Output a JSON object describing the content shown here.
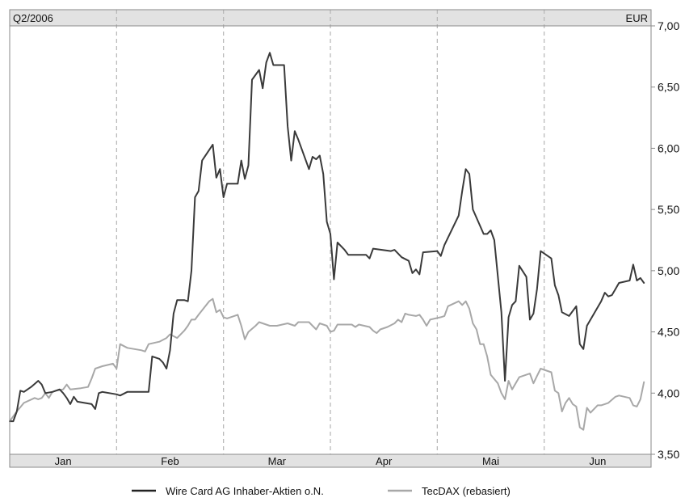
{
  "chart_data": {
    "type": "line",
    "period_label": "Q2/2006",
    "unit_label": "EUR",
    "ylim": [
      3.5,
      7.0
    ],
    "y_ticks": [
      "7,00",
      "6,50",
      "6,00",
      "5,50",
      "5,00",
      "4,50",
      "4,00",
      "3,50"
    ],
    "y_tick_values": [
      7.0,
      6.5,
      6.0,
      5.5,
      5.0,
      4.5,
      4.0,
      3.5
    ],
    "x_range": [
      0,
      180
    ],
    "months": [
      {
        "label": "Jan",
        "start": 0,
        "end": 30
      },
      {
        "label": "Feb",
        "start": 30,
        "end": 60
      },
      {
        "label": "Mar",
        "start": 60,
        "end": 90
      },
      {
        "label": "Apr",
        "start": 90,
        "end": 120
      },
      {
        "label": "Mai",
        "start": 120,
        "end": 150
      },
      {
        "label": "Jun",
        "start": 150,
        "end": 180
      }
    ],
    "grid": "vertical dashed at month boundaries",
    "legend_position": "bottom",
    "series": [
      {
        "name": "Wire Card AG Inhaber-Aktien o.N.",
        "color": "#3a3a3a",
        "points": [
          [
            0,
            3.77
          ],
          [
            1,
            3.77
          ],
          [
            2,
            3.85
          ],
          [
            3,
            4.02
          ],
          [
            4,
            4.01
          ],
          [
            6,
            4.05
          ],
          [
            8,
            4.1
          ],
          [
            9,
            4.07
          ],
          [
            10,
            4.0
          ],
          [
            12,
            4.01
          ],
          [
            14,
            4.03
          ],
          [
            15,
            4.0
          ],
          [
            16,
            3.96
          ],
          [
            17,
            3.91
          ],
          [
            18,
            3.97
          ],
          [
            19,
            3.93
          ],
          [
            21,
            3.92
          ],
          [
            23,
            3.91
          ],
          [
            24,
            3.87
          ],
          [
            25,
            4.0
          ],
          [
            26,
            4.01
          ],
          [
            30,
            3.99
          ],
          [
            31,
            3.98
          ],
          [
            33,
            4.01
          ],
          [
            39,
            4.01
          ],
          [
            40,
            4.3
          ],
          [
            42,
            4.28
          ],
          [
            43,
            4.25
          ],
          [
            44,
            4.2
          ],
          [
            45,
            4.35
          ],
          [
            46,
            4.65
          ],
          [
            47,
            4.76
          ],
          [
            49,
            4.76
          ],
          [
            50,
            4.75
          ],
          [
            51,
            5.0
          ],
          [
            52,
            5.6
          ],
          [
            53,
            5.65
          ],
          [
            54,
            5.9
          ],
          [
            57,
            6.03
          ],
          [
            58,
            5.76
          ],
          [
            59,
            5.83
          ],
          [
            60,
            5.6
          ],
          [
            61,
            5.71
          ],
          [
            64,
            5.71
          ],
          [
            65,
            5.9
          ],
          [
            66,
            5.75
          ],
          [
            67,
            5.86
          ],
          [
            68,
            6.56
          ],
          [
            70,
            6.64
          ],
          [
            71,
            6.49
          ],
          [
            72,
            6.7
          ],
          [
            73,
            6.78
          ],
          [
            74,
            6.68
          ],
          [
            77,
            6.68
          ],
          [
            78,
            6.18
          ],
          [
            79,
            5.9
          ],
          [
            80,
            6.14
          ],
          [
            81,
            6.07
          ],
          [
            84,
            5.83
          ],
          [
            85,
            5.93
          ],
          [
            86,
            5.91
          ],
          [
            87,
            5.94
          ],
          [
            88,
            5.79
          ],
          [
            89,
            5.4
          ],
          [
            90,
            5.3
          ],
          [
            91,
            4.93
          ],
          [
            92,
            5.23
          ],
          [
            94,
            5.17
          ],
          [
            95,
            5.13
          ],
          [
            100,
            5.13
          ],
          [
            101,
            5.1
          ],
          [
            102,
            5.18
          ],
          [
            107,
            5.16
          ],
          [
            108,
            5.17
          ],
          [
            110,
            5.11
          ],
          [
            112,
            5.08
          ],
          [
            113,
            4.98
          ],
          [
            114,
            5.01
          ],
          [
            115,
            4.97
          ],
          [
            116,
            5.15
          ],
          [
            120,
            5.16
          ],
          [
            121,
            5.12
          ],
          [
            122,
            5.21
          ],
          [
            126,
            5.45
          ],
          [
            127,
            5.65
          ],
          [
            128,
            5.83
          ],
          [
            129,
            5.79
          ],
          [
            130,
            5.5
          ],
          [
            133,
            5.3
          ],
          [
            134,
            5.3
          ],
          [
            135,
            5.33
          ],
          [
            136,
            5.25
          ],
          [
            138,
            4.66
          ],
          [
            139,
            4.1
          ],
          [
            140,
            4.62
          ],
          [
            141,
            4.72
          ],
          [
            142,
            4.75
          ],
          [
            143,
            5.04
          ],
          [
            145,
            4.95
          ],
          [
            146,
            4.6
          ],
          [
            147,
            4.65
          ],
          [
            148,
            4.85
          ],
          [
            149,
            5.16
          ],
          [
            152,
            5.1
          ],
          [
            153,
            4.88
          ],
          [
            154,
            4.8
          ],
          [
            155,
            4.66
          ],
          [
            157,
            4.63
          ],
          [
            159,
            4.71
          ],
          [
            160,
            4.4
          ],
          [
            161,
            4.36
          ],
          [
            162,
            4.55
          ],
          [
            164,
            4.65
          ],
          [
            166,
            4.75
          ],
          [
            167,
            4.82
          ],
          [
            168,
            4.79
          ],
          [
            169,
            4.8
          ],
          [
            170,
            4.85
          ],
          [
            171,
            4.9
          ],
          [
            174,
            4.92
          ],
          [
            175,
            5.05
          ],
          [
            176,
            4.92
          ],
          [
            177,
            4.94
          ],
          [
            178,
            4.9
          ]
        ]
      },
      {
        "name": "TecDAX (rebasiert)",
        "color": "#a8a8a8",
        "points": [
          [
            0,
            3.77
          ],
          [
            2,
            3.85
          ],
          [
            4,
            3.92
          ],
          [
            7,
            3.96
          ],
          [
            8,
            3.95
          ],
          [
            9,
            3.96
          ],
          [
            10,
            4.0
          ],
          [
            11,
            3.96
          ],
          [
            12,
            4.01
          ],
          [
            13,
            4.02
          ],
          [
            15,
            4.03
          ],
          [
            16,
            4.07
          ],
          [
            17,
            4.03
          ],
          [
            20,
            4.04
          ],
          [
            22,
            4.05
          ],
          [
            23,
            4.12
          ],
          [
            24,
            4.2
          ],
          [
            26,
            4.22
          ],
          [
            29,
            4.24
          ],
          [
            30,
            4.2
          ],
          [
            31,
            4.4
          ],
          [
            33,
            4.37
          ],
          [
            37,
            4.35
          ],
          [
            38,
            4.34
          ],
          [
            39,
            4.4
          ],
          [
            42,
            4.42
          ],
          [
            44,
            4.45
          ],
          [
            45,
            4.48
          ],
          [
            47,
            4.45
          ],
          [
            49,
            4.51
          ],
          [
            50,
            4.55
          ],
          [
            51,
            4.6
          ],
          [
            52,
            4.6
          ],
          [
            53,
            4.64
          ],
          [
            56,
            4.75
          ],
          [
            57,
            4.77
          ],
          [
            58,
            4.66
          ],
          [
            59,
            4.68
          ],
          [
            60,
            4.62
          ],
          [
            61,
            4.61
          ],
          [
            63,
            4.63
          ],
          [
            64,
            4.64
          ],
          [
            65,
            4.55
          ],
          [
            66,
            4.44
          ],
          [
            67,
            4.5
          ],
          [
            69,
            4.55
          ],
          [
            70,
            4.58
          ],
          [
            72,
            4.56
          ],
          [
            73,
            4.55
          ],
          [
            75,
            4.55
          ],
          [
            78,
            4.57
          ],
          [
            79,
            4.56
          ],
          [
            80,
            4.55
          ],
          [
            81,
            4.58
          ],
          [
            84,
            4.58
          ],
          [
            85,
            4.55
          ],
          [
            86,
            4.52
          ],
          [
            87,
            4.57
          ],
          [
            88,
            4.56
          ],
          [
            89,
            4.55
          ],
          [
            90,
            4.5
          ],
          [
            91,
            4.51
          ],
          [
            92,
            4.56
          ],
          [
            96,
            4.56
          ],
          [
            97,
            4.54
          ],
          [
            98,
            4.56
          ],
          [
            101,
            4.54
          ],
          [
            102,
            4.51
          ],
          [
            103,
            4.49
          ],
          [
            104,
            4.52
          ],
          [
            106,
            4.54
          ],
          [
            108,
            4.57
          ],
          [
            109,
            4.6
          ],
          [
            110,
            4.58
          ],
          [
            111,
            4.65
          ],
          [
            112,
            4.64
          ],
          [
            114,
            4.63
          ],
          [
            115,
            4.64
          ],
          [
            116,
            4.6
          ],
          [
            117,
            4.55
          ],
          [
            118,
            4.6
          ],
          [
            121,
            4.62
          ],
          [
            122,
            4.63
          ],
          [
            123,
            4.71
          ],
          [
            126,
            4.75
          ],
          [
            127,
            4.72
          ],
          [
            128,
            4.75
          ],
          [
            129,
            4.69
          ],
          [
            130,
            4.57
          ],
          [
            131,
            4.52
          ],
          [
            132,
            4.4
          ],
          [
            133,
            4.4
          ],
          [
            134,
            4.3
          ],
          [
            135,
            4.15
          ],
          [
            137,
            4.08
          ],
          [
            138,
            4.0
          ],
          [
            139,
            3.95
          ],
          [
            140,
            4.1
          ],
          [
            141,
            4.03
          ],
          [
            143,
            4.13
          ],
          [
            145,
            4.15
          ],
          [
            146,
            4.16
          ],
          [
            147,
            4.08
          ],
          [
            148,
            4.14
          ],
          [
            149,
            4.2
          ],
          [
            152,
            4.17
          ],
          [
            153,
            4.02
          ],
          [
            154,
            4.0
          ],
          [
            155,
            3.85
          ],
          [
            156,
            3.92
          ],
          [
            157,
            3.96
          ],
          [
            158,
            3.91
          ],
          [
            159,
            3.89
          ],
          [
            160,
            3.72
          ],
          [
            161,
            3.7
          ],
          [
            162,
            3.88
          ],
          [
            163,
            3.84
          ],
          [
            165,
            3.9
          ],
          [
            166,
            3.9
          ],
          [
            167,
            3.91
          ],
          [
            168,
            3.92
          ],
          [
            170,
            3.97
          ],
          [
            171,
            3.98
          ],
          [
            174,
            3.96
          ],
          [
            175,
            3.9
          ],
          [
            176,
            3.89
          ],
          [
            177,
            3.95
          ],
          [
            178,
            4.09
          ]
        ]
      }
    ]
  }
}
